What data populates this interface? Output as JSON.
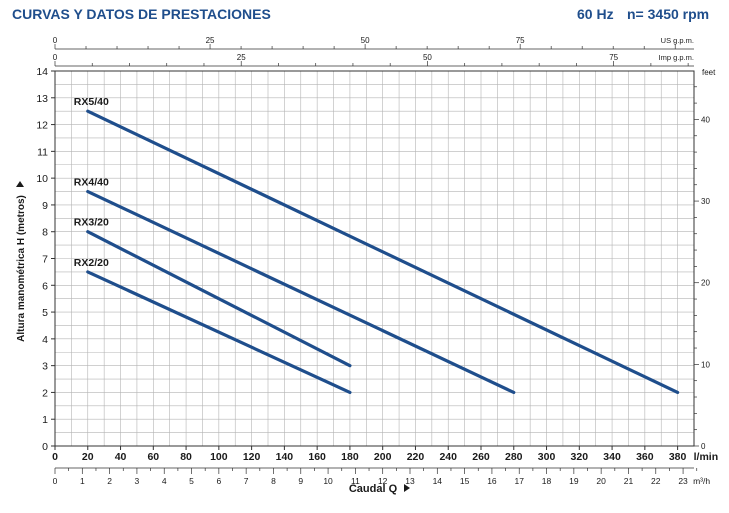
{
  "header": {
    "title": "CURVAS Y DATOS DE PRESTACIONES",
    "frequency": "60 Hz",
    "speed": "n= 3450 rpm"
  },
  "chart_data": {
    "type": "line",
    "title": "",
    "xlabel": "Caudal Q",
    "ylabel": "Altura manométrica H (metros)",
    "xlim": [
      0,
      390
    ],
    "ylim": [
      0,
      14
    ],
    "x_unit": "l/min",
    "x_ticks": [
      0,
      20,
      40,
      60,
      80,
      100,
      120,
      140,
      160,
      180,
      200,
      220,
      240,
      260,
      280,
      300,
      320,
      340,
      360,
      380
    ],
    "y_ticks": [
      0,
      1,
      2,
      3,
      4,
      5,
      6,
      7,
      8,
      9,
      10,
      11,
      12,
      13,
      14
    ],
    "grid": true,
    "secondary_axes": {
      "m3h": {
        "unit": "m³/h",
        "ticks": [
          0,
          1,
          2,
          3,
          4,
          5,
          6,
          7,
          8,
          9,
          10,
          11,
          12,
          13,
          14,
          15,
          16,
          17,
          18,
          19,
          20,
          21,
          22,
          23
        ]
      },
      "imp_gpm": {
        "unit": "Imp g.p.m.",
        "ticks": [
          0,
          25,
          50,
          75
        ]
      },
      "us_gpm": {
        "unit": "US g.p.m.",
        "ticks": [
          0,
          25,
          50,
          75
        ]
      },
      "feet": {
        "unit": "feet",
        "ticks": [
          0,
          10,
          20,
          30,
          40
        ]
      }
    },
    "series": [
      {
        "name": "RX5/40",
        "x": [
          20,
          380
        ],
        "y": [
          12.5,
          2
        ]
      },
      {
        "name": "RX4/40",
        "x": [
          20,
          280
        ],
        "y": [
          9.5,
          2
        ]
      },
      {
        "name": "RX3/20",
        "x": [
          20,
          180
        ],
        "y": [
          8,
          3
        ]
      },
      {
        "name": "RX2/20",
        "x": [
          20,
          180
        ],
        "y": [
          6.5,
          2
        ]
      }
    ],
    "colors": {
      "curve": "#1f4e8c",
      "grid": "#b4b4b4",
      "accent": "#1f4e8c"
    }
  }
}
